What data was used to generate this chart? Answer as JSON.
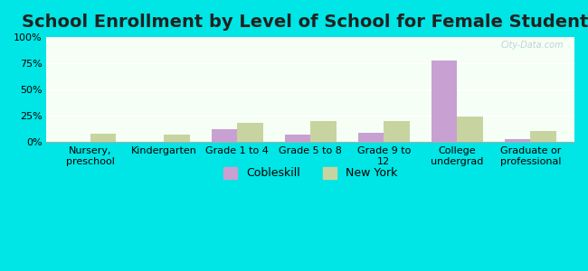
{
  "title": "School Enrollment by Level of School for Female Students",
  "categories": [
    "Nursery,\npreschool",
    "Kindergarten",
    "Grade 1 to 4",
    "Grade 5 to 8",
    "Grade 9 to\n12",
    "College\nundergrad",
    "Graduate or\nprofessional"
  ],
  "cobleskill": [
    0.0,
    0.0,
    12.0,
    7.0,
    9.0,
    78.0,
    3.0
  ],
  "new_york": [
    8.0,
    7.0,
    18.0,
    20.0,
    20.0,
    24.0,
    11.0
  ],
  "cobleskill_color": "#c8a0d2",
  "new_york_color": "#c8d4a0",
  "bar_width": 0.35,
  "ylim": [
    0,
    100
  ],
  "yticks": [
    0,
    25,
    50,
    75,
    100
  ],
  "ytick_labels": [
    "0%",
    "25%",
    "50%",
    "75%",
    "100%"
  ],
  "background_color": "#00e5e5",
  "plot_bg_color": "#f5fff5",
  "title_fontsize": 14,
  "tick_fontsize": 8,
  "legend_fontsize": 9,
  "watermark": "City-Data.com"
}
